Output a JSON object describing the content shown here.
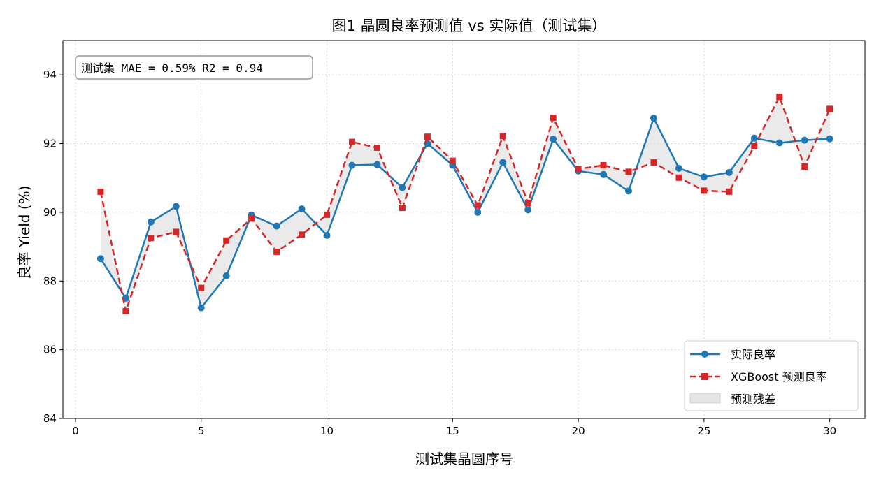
{
  "chart_data": {
    "type": "line",
    "title": "图1  晶圆良率预测值 vs 实际值（测试集）",
    "xlabel": "测试集晶圆序号",
    "ylabel": "良率 Yield (%)",
    "xlim": [
      -0.5,
      31.4
    ],
    "ylim": [
      84,
      95
    ],
    "xticks": [
      0,
      5,
      10,
      15,
      20,
      25,
      30
    ],
    "yticks": [
      84,
      86,
      88,
      90,
      92,
      94
    ],
    "grid": true,
    "legend_position": "lower-right",
    "x": [
      1,
      2,
      3,
      4,
      5,
      6,
      7,
      8,
      9,
      10,
      11,
      12,
      13,
      14,
      15,
      16,
      17,
      18,
      19,
      20,
      21,
      22,
      23,
      24,
      25,
      26,
      27,
      28,
      29,
      30
    ],
    "series": [
      {
        "name": "实际良率",
        "color": "#1f77b4",
        "marker": "circle",
        "linestyle": "solid",
        "values": [
          88.65,
          87.5,
          89.72,
          90.17,
          87.22,
          88.15,
          89.92,
          89.6,
          90.1,
          89.33,
          91.37,
          91.39,
          90.72,
          92.0,
          91.37,
          90.0,
          91.45,
          90.07,
          92.13,
          91.2,
          91.1,
          90.62,
          92.74,
          91.28,
          91.03,
          91.16,
          92.16,
          92.02,
          92.1,
          92.14
        ]
      },
      {
        "name": "XGBoost 预测良率",
        "color": "#d62728",
        "marker": "square",
        "linestyle": "dashed",
        "values": [
          90.6,
          87.12,
          89.25,
          89.43,
          87.8,
          89.18,
          89.82,
          88.85,
          89.35,
          89.93,
          92.05,
          91.88,
          90.13,
          92.2,
          91.5,
          90.2,
          92.22,
          90.27,
          92.75,
          91.26,
          91.37,
          91.18,
          91.45,
          91.01,
          90.63,
          90.6,
          91.92,
          93.36,
          91.33,
          93.01
        ]
      }
    ],
    "fill": {
      "name": "预测残差",
      "color": "#d9d9d9"
    },
    "annotation": "测试集 MAE = 0.59%   R2 = 0.94"
  }
}
